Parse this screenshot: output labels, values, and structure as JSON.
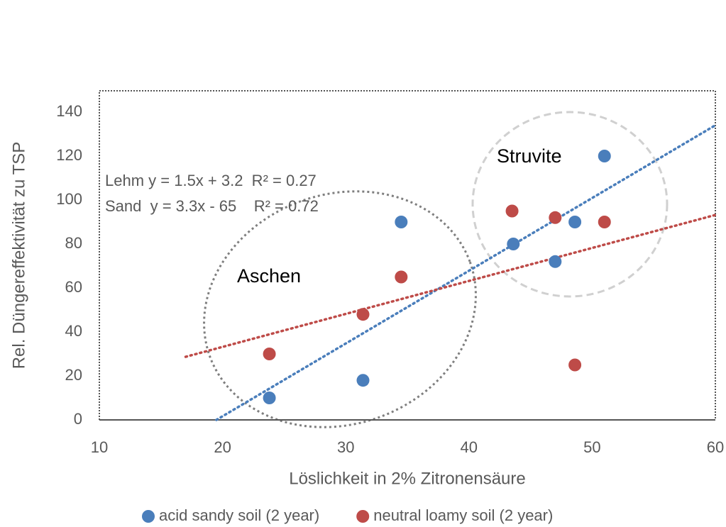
{
  "chart_data": {
    "type": "scatter",
    "xlabel": "Löslichkeit in 2% Zitronensäure",
    "ylabel": "Rel. Düngereffektivität zu TSP",
    "xlim": [
      10,
      60
    ],
    "xticks": [
      10,
      20,
      30,
      40,
      50,
      60
    ],
    "ylim": [
      0,
      140
    ],
    "yticks": [
      0,
      20,
      40,
      60,
      80,
      100,
      120,
      140
    ],
    "series": [
      {
        "name": "acid sandy soil (2 year)",
        "color": "#4a7ebb",
        "x": [
          23.8,
          31.4,
          34.5,
          43.6,
          47.0,
          48.6,
          51.0
        ],
        "values": [
          10,
          18,
          90,
          80,
          72,
          90,
          120
        ]
      },
      {
        "name": "neutral loamy soil (2 year)",
        "color": "#be4b48",
        "x": [
          23.8,
          31.4,
          34.5,
          43.5,
          47.0,
          48.6,
          51.0
        ],
        "values": [
          30,
          48,
          65,
          95,
          92,
          25,
          90
        ]
      }
    ],
    "trendlines": [
      {
        "color": "#4a7ebb",
        "x": [
          19.5,
          60
        ],
        "values": [
          0,
          134
        ]
      },
      {
        "color": "#be4b48",
        "x": [
          17,
          60
        ],
        "values": [
          28.7,
          93.2
        ]
      }
    ],
    "annotations": [
      "Lehm y = 1.5x + 3.2  R² = 0.27",
      "Sand  y = 3.3x - 65    R² = 0.72",
      "Aschen",
      "Struvite"
    ],
    "legend": "bottom"
  }
}
